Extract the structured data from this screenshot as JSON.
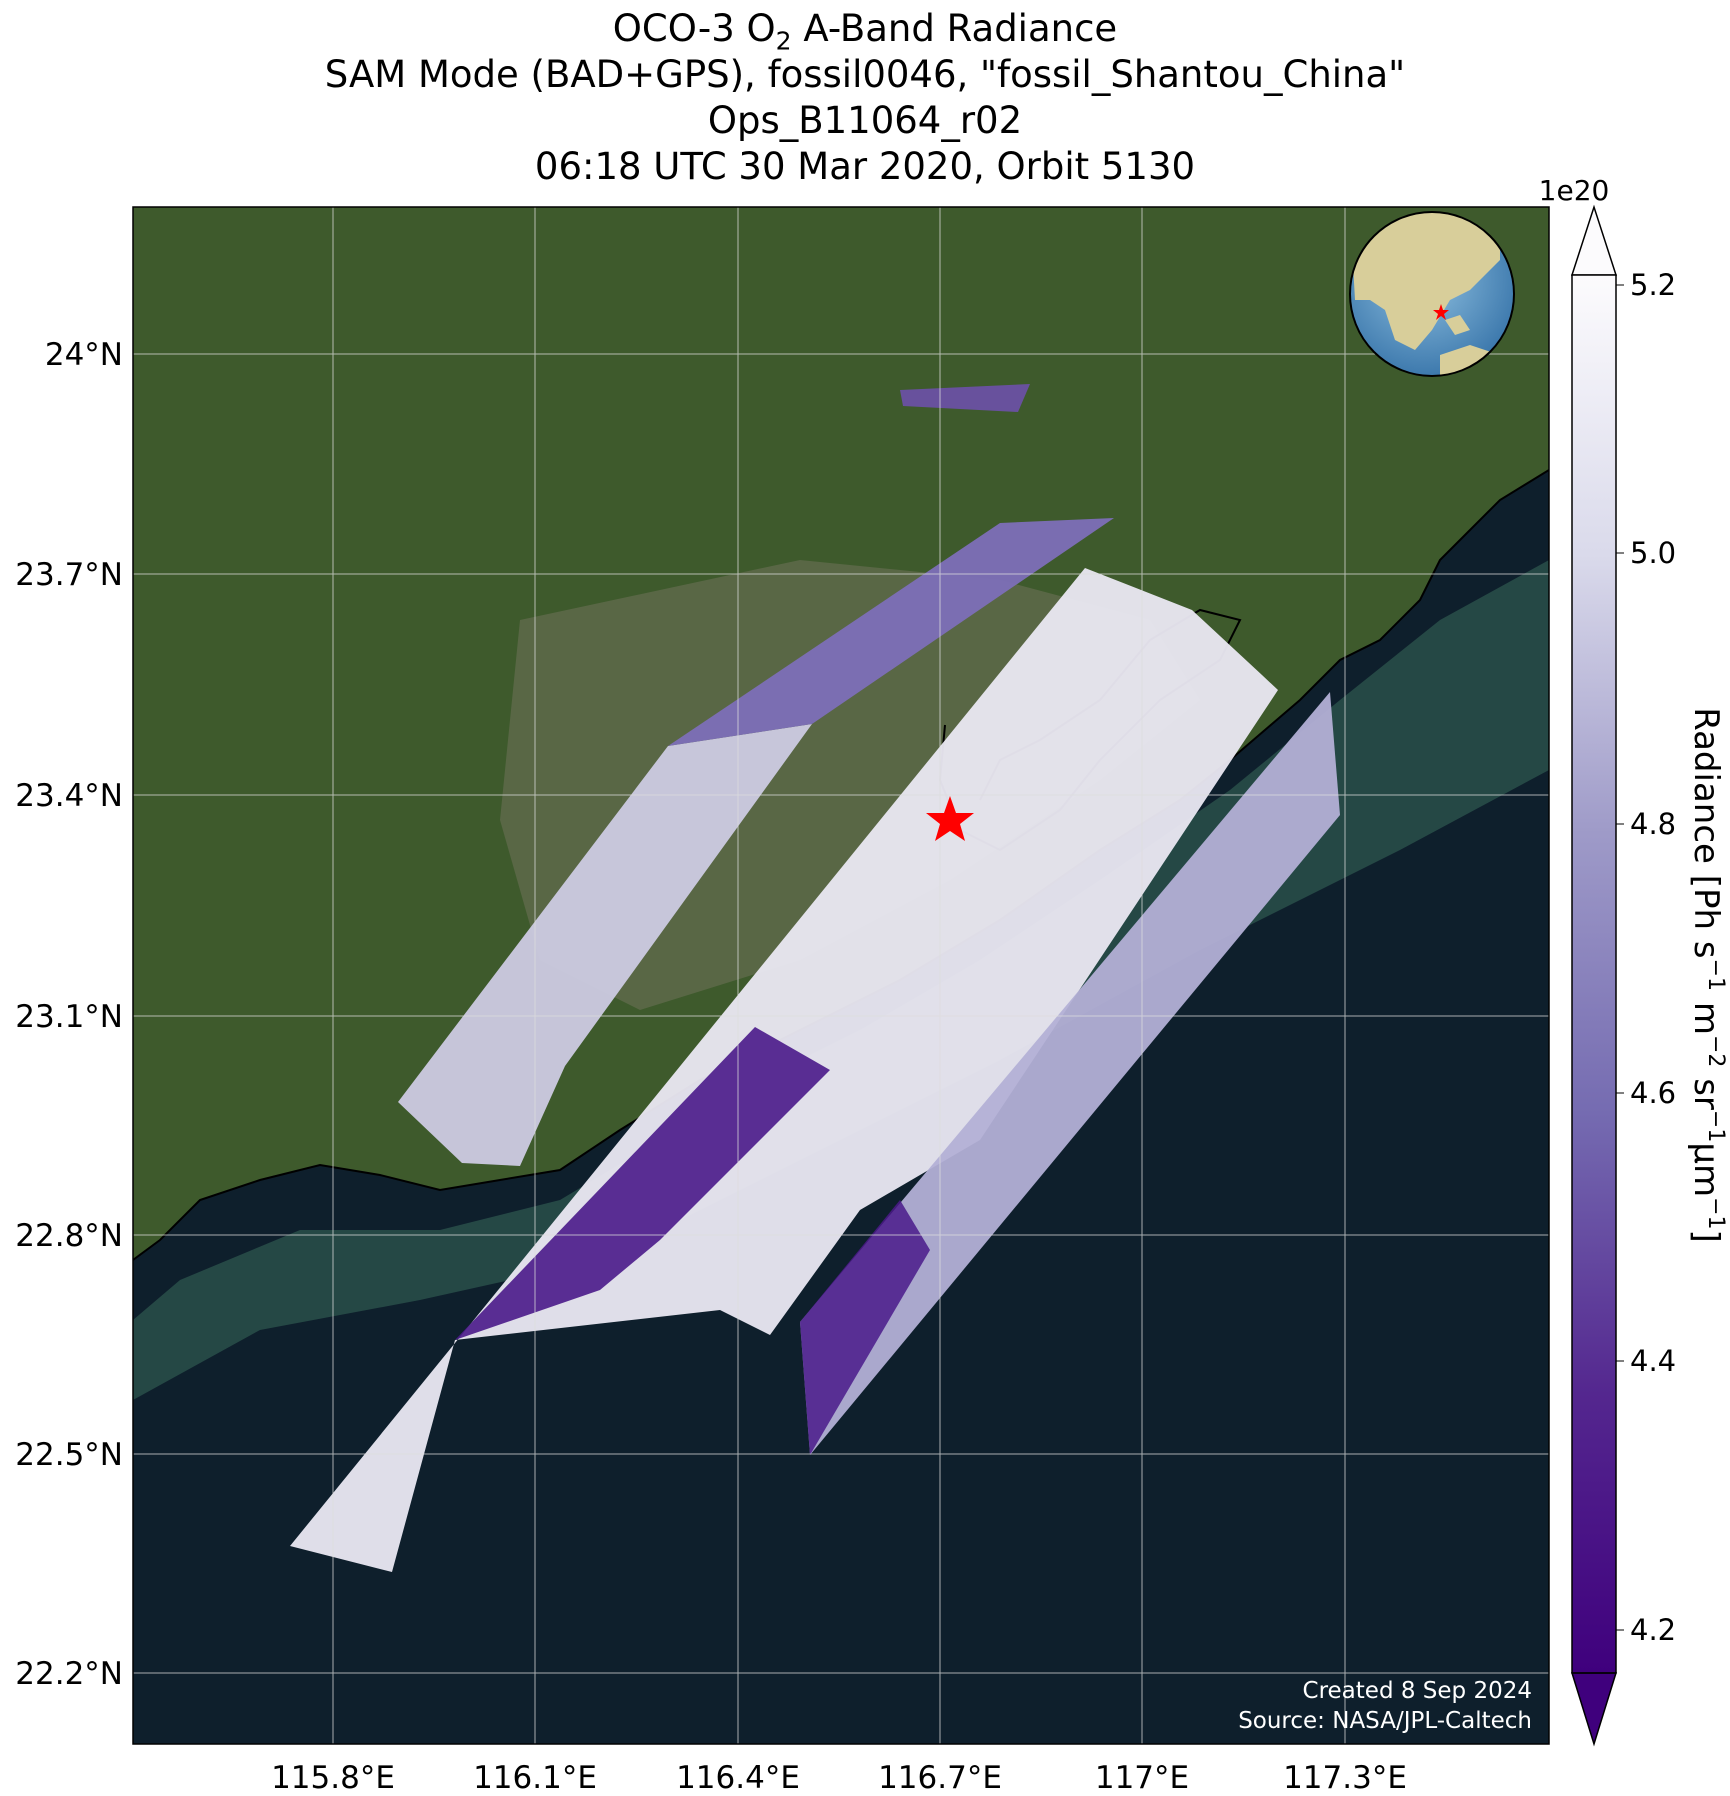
{
  "title": {
    "line1_prefix": "OCO-3 O",
    "line1_sub": "2",
    "line1_suffix": " A-Band Radiance",
    "line2": "SAM Mode (BAD+GPS), fossil0046, \"fossil_Shantou_China\"",
    "line3": "Ops_B11064_r02",
    "line4": "06:18 UTC 30 Mar 2020, Orbit 5130"
  },
  "map": {
    "lon_labels": [
      "115.8°E",
      "116.1°E",
      "116.4°E",
      "116.7°E",
      "117°E",
      "117.3°E"
    ],
    "lat_labels": [
      "24°N",
      "23.7°N",
      "23.4°N",
      "23.1°N",
      "22.8°N",
      "22.5°N",
      "22.2°N"
    ],
    "target_marker": "red-star",
    "inset": "globe-locator",
    "credit_line1": "Created 8 Sep 2024",
    "credit_line2": "Source: NASA/JPL-Caltech",
    "colors": {
      "ocean": "#0e1f2c",
      "land": "#3e5a2c",
      "coast": "#000000",
      "marker": "#ff0000"
    }
  },
  "colorbar": {
    "multiplier": "1e20",
    "ticks": [
      "5.2",
      "5.0",
      "4.8",
      "4.6",
      "4.4",
      "4.2"
    ],
    "label_main": "Radiance [Ph s",
    "label_sup1": "−1",
    "label_m": " m",
    "label_sup2": "−2",
    "label_sr": " sr",
    "label_sup3": "−1",
    "label_um": "μm",
    "label_sup4": "−1",
    "label_end": "]",
    "colormap": "Purples_r",
    "range": [
      4.15,
      5.25
    ],
    "extend": "both"
  }
}
